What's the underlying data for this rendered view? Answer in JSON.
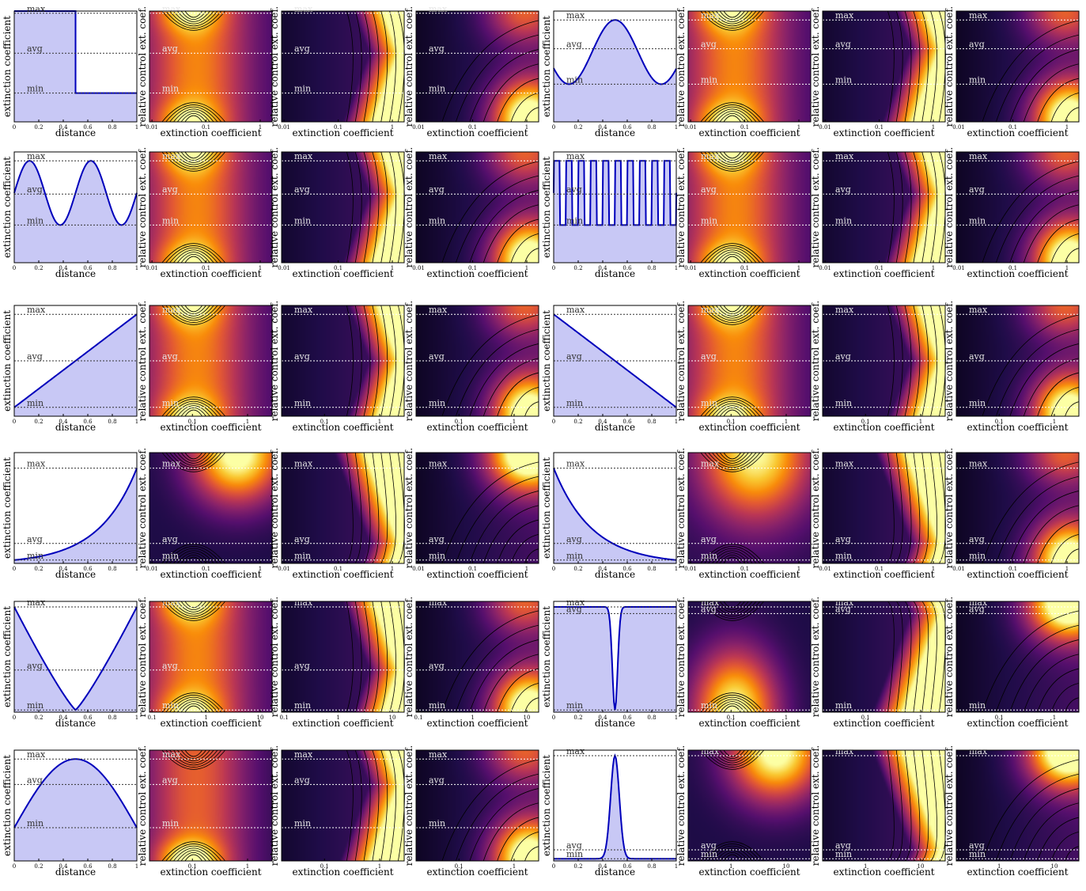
{
  "figure": {
    "profile_xlabel": "distance",
    "profile_ylabel": "extinction coefficient",
    "heatmap_xlabel": "extinction coefficient",
    "heatmap_ylabel": "relative control ext. coef.",
    "level_labels": {
      "max": "max",
      "avg": "avg",
      "min": "min"
    },
    "profile_ticks": [
      "0",
      "0.2",
      "0.4",
      "0.6",
      "0.8",
      "1"
    ],
    "colors": {
      "profile_line": "#0000bb",
      "profile_fill": "#c8c8f5",
      "colormap": "inferno"
    }
  },
  "chart_data": [
    {
      "type": "line",
      "panel": "profile",
      "profile": "step",
      "x": [
        0,
        0.5,
        0.5,
        1
      ],
      "y": [
        1,
        1,
        0,
        0
      ],
      "xlim": [
        0,
        1
      ],
      "levels": {
        "max": 0.98,
        "avg": 0.62,
        "min": 0.26
      }
    },
    {
      "type": "heatmap",
      "panel": "heatmap",
      "method": 1,
      "profile": "step",
      "xticks": [
        "0.01",
        "0.1",
        "1"
      ],
      "levels": {
        "max": 0.98,
        "avg": 0.62,
        "min": 0.26
      }
    },
    {
      "type": "heatmap",
      "panel": "heatmap",
      "method": 2,
      "profile": "step",
      "xticks": [
        "0.01",
        "0.1",
        "1"
      ],
      "levels": {
        "max": 0.98,
        "avg": 0.62,
        "min": 0.26
      }
    },
    {
      "type": "heatmap",
      "panel": "heatmap",
      "method": 3,
      "profile": "step",
      "xticks": [
        "0.01",
        "0.1",
        "1"
      ],
      "levels": {
        "max": 0.98,
        "avg": 0.62,
        "min": 0.26
      }
    },
    {
      "type": "line",
      "panel": "profile",
      "profile": "cosine-1",
      "x": [
        0,
        1
      ],
      "y": [
        0,
        1
      ],
      "xlim": [
        0,
        1
      ],
      "levels": {
        "max": 0.92,
        "avg": 0.66,
        "min": 0.34
      }
    },
    {
      "type": "heatmap",
      "panel": "heatmap",
      "method": 1,
      "profile": "cosine-1",
      "xticks": [
        "0.01",
        "0.1",
        "1"
      ],
      "levels": {
        "max": 0.92,
        "avg": 0.66,
        "min": 0.34
      }
    },
    {
      "type": "heatmap",
      "panel": "heatmap",
      "method": 2,
      "profile": "cosine-1",
      "xticks": [
        "0.01",
        "0.1",
        "1"
      ],
      "levels": {
        "max": 0.92,
        "avg": 0.66,
        "min": 0.34
      }
    },
    {
      "type": "heatmap",
      "panel": "heatmap",
      "method": 3,
      "profile": "cosine-1",
      "xticks": [
        "0.01",
        "0.1",
        "1"
      ],
      "levels": {
        "max": 0.92,
        "avg": 0.66,
        "min": 0.34
      }
    },
    {
      "type": "line",
      "panel": "profile",
      "profile": "cosine-2",
      "x": [
        0,
        1
      ],
      "y": [
        0,
        1
      ],
      "xlim": [
        0,
        1
      ],
      "levels": {
        "max": 0.92,
        "avg": 0.62,
        "min": 0.34
      }
    },
    {
      "type": "heatmap",
      "panel": "heatmap",
      "method": 1,
      "profile": "cosine-2",
      "xticks": [
        "0.01",
        "0.1",
        "1"
      ],
      "levels": {
        "max": 0.92,
        "avg": 0.62,
        "min": 0.34
      }
    },
    {
      "type": "heatmap",
      "panel": "heatmap",
      "method": 2,
      "profile": "cosine-2",
      "xticks": [
        "0.01",
        "0.1",
        "1"
      ],
      "levels": {
        "max": 0.92,
        "avg": 0.62,
        "min": 0.34
      }
    },
    {
      "type": "heatmap",
      "panel": "heatmap",
      "method": 3,
      "profile": "cosine-2",
      "xticks": [
        "0.01",
        "0.1",
        "1"
      ],
      "levels": {
        "max": 0.92,
        "avg": 0.62,
        "min": 0.34
      }
    },
    {
      "type": "line",
      "panel": "profile",
      "profile": "square-wave",
      "x": [
        0,
        1
      ],
      "y": [
        0,
        1
      ],
      "xlim": [
        0,
        1
      ],
      "levels": {
        "max": 0.92,
        "avg": 0.62,
        "min": 0.34
      }
    },
    {
      "type": "heatmap",
      "panel": "heatmap",
      "method": 1,
      "profile": "square-wave",
      "xticks": [
        "0.01",
        "0.1",
        "1"
      ],
      "levels": {
        "max": 0.92,
        "avg": 0.62,
        "min": 0.34
      }
    },
    {
      "type": "heatmap",
      "panel": "heatmap",
      "method": 2,
      "profile": "square-wave",
      "xticks": [
        "0.01",
        "0.1",
        "1"
      ],
      "levels": {
        "max": 0.92,
        "avg": 0.62,
        "min": 0.34
      }
    },
    {
      "type": "heatmap",
      "panel": "heatmap",
      "method": 3,
      "profile": "square-wave",
      "xticks": [
        "0.01",
        "0.1",
        "1"
      ],
      "levels": {
        "max": 0.92,
        "avg": 0.62,
        "min": 0.34
      }
    },
    {
      "type": "line",
      "panel": "profile",
      "profile": "linear-up",
      "x": [
        0,
        1
      ],
      "y": [
        0,
        1
      ],
      "xlim": [
        0,
        1
      ],
      "levels": {
        "max": 0.92,
        "avg": 0.5,
        "min": 0.08
      }
    },
    {
      "type": "heatmap",
      "panel": "heatmap",
      "method": 1,
      "profile": "linear-up",
      "xticks": [
        "0.1",
        "1"
      ],
      "levels": {
        "max": 0.92,
        "avg": 0.5,
        "min": 0.08
      }
    },
    {
      "type": "heatmap",
      "panel": "heatmap",
      "method": 2,
      "profile": "linear-up",
      "xticks": [
        "0.1",
        "1"
      ],
      "levels": {
        "max": 0.92,
        "avg": 0.5,
        "min": 0.08
      }
    },
    {
      "type": "heatmap",
      "panel": "heatmap",
      "method": 3,
      "profile": "linear-up",
      "xticks": [
        "0.1",
        "1"
      ],
      "levels": {
        "max": 0.92,
        "avg": 0.5,
        "min": 0.08
      }
    },
    {
      "type": "line",
      "panel": "profile",
      "profile": "linear-down",
      "x": [
        0,
        1
      ],
      "y": [
        1,
        0
      ],
      "xlim": [
        0,
        1
      ],
      "levels": {
        "max": 0.92,
        "avg": 0.5,
        "min": 0.08
      }
    },
    {
      "type": "heatmap",
      "panel": "heatmap",
      "method": 1,
      "profile": "linear-down",
      "xticks": [
        "0.1",
        "1"
      ],
      "levels": {
        "max": 0.92,
        "avg": 0.5,
        "min": 0.08
      }
    },
    {
      "type": "heatmap",
      "panel": "heatmap",
      "method": 2,
      "profile": "linear-down",
      "xticks": [
        "0.1",
        "1"
      ],
      "levels": {
        "max": 0.92,
        "avg": 0.5,
        "min": 0.08
      }
    },
    {
      "type": "heatmap",
      "panel": "heatmap",
      "method": 3,
      "profile": "linear-down",
      "xticks": [
        "0.1",
        "1"
      ],
      "levels": {
        "max": 0.92,
        "avg": 0.5,
        "min": 0.08
      }
    },
    {
      "type": "line",
      "panel": "profile",
      "profile": "exp-up",
      "x": [
        0,
        1
      ],
      "y": [
        0,
        1
      ],
      "xlim": [
        0,
        1
      ],
      "levels": {
        "max": 0.86,
        "avg": 0.18,
        "min": 0.03
      }
    },
    {
      "type": "heatmap",
      "panel": "heatmap",
      "method": 1,
      "profile": "exp-up",
      "xticks": [
        "0.01",
        "0.1",
        "1"
      ],
      "levels": {
        "max": 0.86,
        "avg": 0.18,
        "min": 0.03
      }
    },
    {
      "type": "heatmap",
      "panel": "heatmap",
      "method": 2,
      "profile": "exp-up",
      "xticks": [
        "0.01",
        "0.1",
        "1"
      ],
      "levels": {
        "max": 0.86,
        "avg": 0.18,
        "min": 0.03
      }
    },
    {
      "type": "heatmap",
      "panel": "heatmap",
      "method": 3,
      "profile": "exp-up",
      "xticks": [
        "0.01",
        "0.1",
        "1"
      ],
      "levels": {
        "max": 0.86,
        "avg": 0.18,
        "min": 0.03
      }
    },
    {
      "type": "line",
      "panel": "profile",
      "profile": "exp-down",
      "x": [
        0,
        1
      ],
      "y": [
        1,
        0
      ],
      "xlim": [
        0,
        1
      ],
      "levels": {
        "max": 0.86,
        "avg": 0.18,
        "min": 0.03
      }
    },
    {
      "type": "heatmap",
      "panel": "heatmap",
      "method": 1,
      "profile": "exp-down",
      "xticks": [
        "0.01",
        "0.1",
        "1"
      ],
      "levels": {
        "max": 0.86,
        "avg": 0.18,
        "min": 0.03
      }
    },
    {
      "type": "heatmap",
      "panel": "heatmap",
      "method": 2,
      "profile": "exp-down",
      "xticks": [
        "0.01",
        "0.1",
        "1"
      ],
      "levels": {
        "max": 0.86,
        "avg": 0.18,
        "min": 0.03
      }
    },
    {
      "type": "heatmap",
      "panel": "heatmap",
      "method": 3,
      "profile": "exp-down",
      "xticks": [
        "0.01",
        "0.1",
        "1"
      ],
      "levels": {
        "max": 0.86,
        "avg": 0.18,
        "min": 0.03
      }
    },
    {
      "type": "line",
      "panel": "profile",
      "profile": "valley",
      "x": [
        0,
        0.5,
        1
      ],
      "y": [
        1,
        0,
        1
      ],
      "xlim": [
        0,
        1
      ],
      "levels": {
        "max": 0.95,
        "avg": 0.38,
        "min": 0.02
      }
    },
    {
      "type": "heatmap",
      "panel": "heatmap",
      "method": 1,
      "profile": "valley",
      "xticks": [
        "0.1",
        "1",
        "10"
      ],
      "levels": {
        "max": 0.95,
        "avg": 0.38,
        "min": 0.02
      }
    },
    {
      "type": "heatmap",
      "panel": "heatmap",
      "method": 2,
      "profile": "valley",
      "xticks": [
        "0.1",
        "1",
        "10"
      ],
      "levels": {
        "max": 0.95,
        "avg": 0.38,
        "min": 0.02
      }
    },
    {
      "type": "heatmap",
      "panel": "heatmap",
      "method": 3,
      "profile": "valley",
      "xticks": [
        "0.1",
        "1",
        "10"
      ],
      "levels": {
        "max": 0.95,
        "avg": 0.38,
        "min": 0.02
      }
    },
    {
      "type": "line",
      "panel": "profile",
      "profile": "narrow-dip",
      "x": [
        0,
        0.5,
        1
      ],
      "y": [
        1,
        0,
        1
      ],
      "xlim": [
        0,
        1
      ],
      "levels": {
        "max": 0.95,
        "avg": 0.89,
        "min": 0.02
      }
    },
    {
      "type": "heatmap",
      "panel": "heatmap",
      "method": 1,
      "profile": "narrow-dip",
      "xticks": [
        "0.1",
        "1"
      ],
      "levels": {
        "max": 0.95,
        "avg": 0.89,
        "min": 0.02
      }
    },
    {
      "type": "heatmap",
      "panel": "heatmap",
      "method": 2,
      "profile": "narrow-dip",
      "xticks": [
        "0.1",
        "1"
      ],
      "levels": {
        "max": 0.95,
        "avg": 0.89,
        "min": 0.02
      }
    },
    {
      "type": "heatmap",
      "panel": "heatmap",
      "method": 3,
      "profile": "narrow-dip",
      "xticks": [
        "0.1",
        "1"
      ],
      "levels": {
        "max": 0.95,
        "avg": 0.89,
        "min": 0.02
      }
    },
    {
      "type": "line",
      "panel": "profile",
      "profile": "hill",
      "x": [
        0,
        0.5,
        1
      ],
      "y": [
        0,
        1,
        0
      ],
      "xlim": [
        0,
        1
      ],
      "levels": {
        "max": 0.92,
        "avg": 0.69,
        "min": 0.3
      }
    },
    {
      "type": "heatmap",
      "panel": "heatmap",
      "method": 1,
      "profile": "hill",
      "xticks": [
        "0.1",
        "1"
      ],
      "levels": {
        "max": 0.92,
        "avg": 0.69,
        "min": 0.3
      }
    },
    {
      "type": "heatmap",
      "panel": "heatmap",
      "method": 2,
      "profile": "hill",
      "xticks": [
        "0.1",
        "1"
      ],
      "levels": {
        "max": 0.92,
        "avg": 0.69,
        "min": 0.3
      }
    },
    {
      "type": "heatmap",
      "panel": "heatmap",
      "method": 3,
      "profile": "hill",
      "xticks": [
        "0.1",
        "1"
      ],
      "levels": {
        "max": 0.92,
        "avg": 0.69,
        "min": 0.3
      }
    },
    {
      "type": "line",
      "panel": "profile",
      "profile": "narrow-peak",
      "x": [
        0,
        0.5,
        1
      ],
      "y": [
        0,
        1,
        0
      ],
      "xlim": [
        0,
        1
      ],
      "levels": {
        "max": 0.95,
        "avg": 0.1,
        "min": 0.02
      }
    },
    {
      "type": "heatmap",
      "panel": "heatmap",
      "method": 1,
      "profile": "narrow-peak",
      "xticks": [
        "1",
        "10"
      ],
      "levels": {
        "max": 0.95,
        "avg": 0.1,
        "min": 0.02
      }
    },
    {
      "type": "heatmap",
      "panel": "heatmap",
      "method": 2,
      "profile": "narrow-peak",
      "xticks": [
        "1",
        "10"
      ],
      "levels": {
        "max": 0.95,
        "avg": 0.1,
        "min": 0.02
      }
    },
    {
      "type": "heatmap",
      "panel": "heatmap",
      "method": 3,
      "profile": "narrow-peak",
      "xticks": [
        "1",
        "10"
      ],
      "levels": {
        "max": 0.95,
        "avg": 0.1,
        "min": 0.02
      }
    }
  ]
}
